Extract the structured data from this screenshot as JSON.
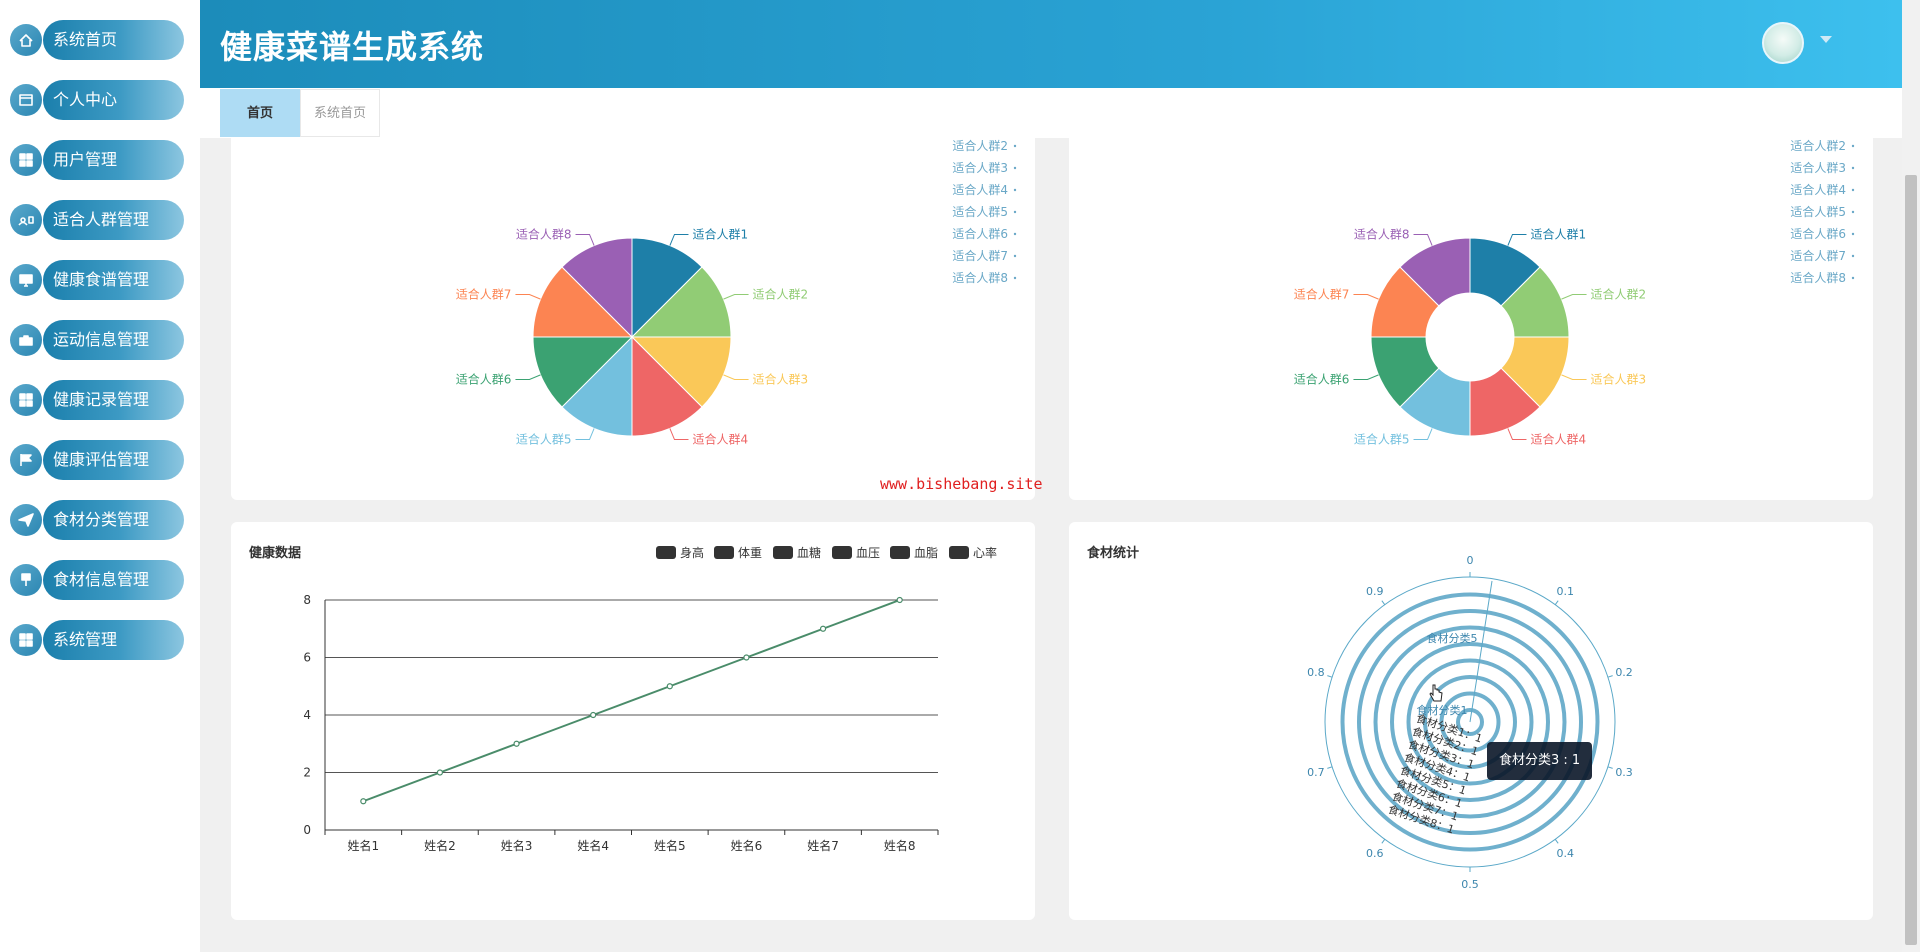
{
  "app": {
    "title": "健康菜谱生成系统"
  },
  "sidebar": {
    "items": [
      {
        "label": "系统首页",
        "icon": "home-icon"
      },
      {
        "label": "个人中心",
        "icon": "profile-card-icon"
      },
      {
        "label": "用户管理",
        "icon": "grid-icon"
      },
      {
        "label": "适合人群管理",
        "icon": "people-icon"
      },
      {
        "label": "健康食谱管理",
        "icon": "monitor-icon"
      },
      {
        "label": "运动信息管理",
        "icon": "briefcase-icon"
      },
      {
        "label": "健康记录管理",
        "icon": "grid-icon"
      },
      {
        "label": "健康评估管理",
        "icon": "flag-icon"
      },
      {
        "label": "食材分类管理",
        "icon": "send-icon"
      },
      {
        "label": "食材信息管理",
        "icon": "pin-icon"
      },
      {
        "label": "系统管理",
        "icon": "grid-icon"
      }
    ]
  },
  "tabs": [
    {
      "label": "首页",
      "active": true
    },
    {
      "label": "系统首页",
      "active": false
    }
  ],
  "watermark": "www.bishebang.site",
  "colors": {
    "header_from": "#1c8cba",
    "header_to": "#3dc0ee",
    "palette": [
      "#1e7fa8",
      "#91cc75",
      "#fac858",
      "#ee6666",
      "#73c0de",
      "#3ba272",
      "#fc8452",
      "#9a60b4"
    ]
  },
  "charts": {
    "pie": {
      "legend": [
        "适合人群2",
        "适合人群3",
        "适合人群4",
        "适合人群5",
        "适合人群6",
        "适合人群7",
        "适合人群8"
      ],
      "chart_data": {
        "type": "pie",
        "categories": [
          "适合人群1",
          "适合人群2",
          "适合人群3",
          "适合人群4",
          "适合人群5",
          "适合人群6",
          "适合人群7",
          "适合人群8"
        ],
        "values": [
          1,
          1,
          1,
          1,
          1,
          1,
          1,
          1
        ]
      }
    },
    "donut": {
      "legend": [
        "适合人群2",
        "适合人群3",
        "适合人群4",
        "适合人群5",
        "适合人群6",
        "适合人群7",
        "适合人群8"
      ],
      "chart_data": {
        "type": "pie",
        "categories": [
          "适合人群1",
          "适合人群2",
          "适合人群3",
          "适合人群4",
          "适合人群5",
          "适合人群6",
          "适合人群7",
          "适合人群8"
        ],
        "values": [
          1,
          1,
          1,
          1,
          1,
          1,
          1,
          1
        ]
      }
    },
    "line": {
      "title": "健康数据",
      "legend": [
        "身高",
        "体重",
        "血糖",
        "血压",
        "血脂",
        "心率"
      ],
      "chart_data": {
        "type": "line",
        "categories": [
          "姓名1",
          "姓名2",
          "姓名3",
          "姓名4",
          "姓名5",
          "姓名6",
          "姓名7",
          "姓名8"
        ],
        "values": [
          1,
          2,
          3,
          4,
          5,
          6,
          7,
          8
        ],
        "ylim": [
          0,
          8
        ],
        "yticks": [
          0,
          2,
          4,
          6,
          8
        ],
        "grid": true
      }
    },
    "radar": {
      "title": "食材统计",
      "tooltip": "食材分类3 : 1",
      "chart_data": {
        "type": "polar-bar",
        "categories": [
          "食材分类1",
          "食材分类2",
          "食材分类3",
          "食材分类4",
          "食材分类5",
          "食材分类6",
          "食材分类7",
          "食材分类8"
        ],
        "values": [
          1,
          1,
          1,
          1,
          1,
          1,
          1,
          1
        ],
        "angle_ticks": [
          "0",
          "0.1",
          "0.2",
          "0.3",
          "0.4",
          "0.5",
          "0.6",
          "0.7",
          "0.8",
          "0.9"
        ],
        "ring_labels": [
          "食材分类1：1",
          "食材分类2：1",
          "食材分类3：1",
          "食材分类4：1",
          "食材分类5：1",
          "食材分类6：1",
          "食材分类7：1",
          "食材分类8：1"
        ],
        "top_labels": [
          "食材分类1",
          "食材分类5"
        ]
      }
    }
  }
}
